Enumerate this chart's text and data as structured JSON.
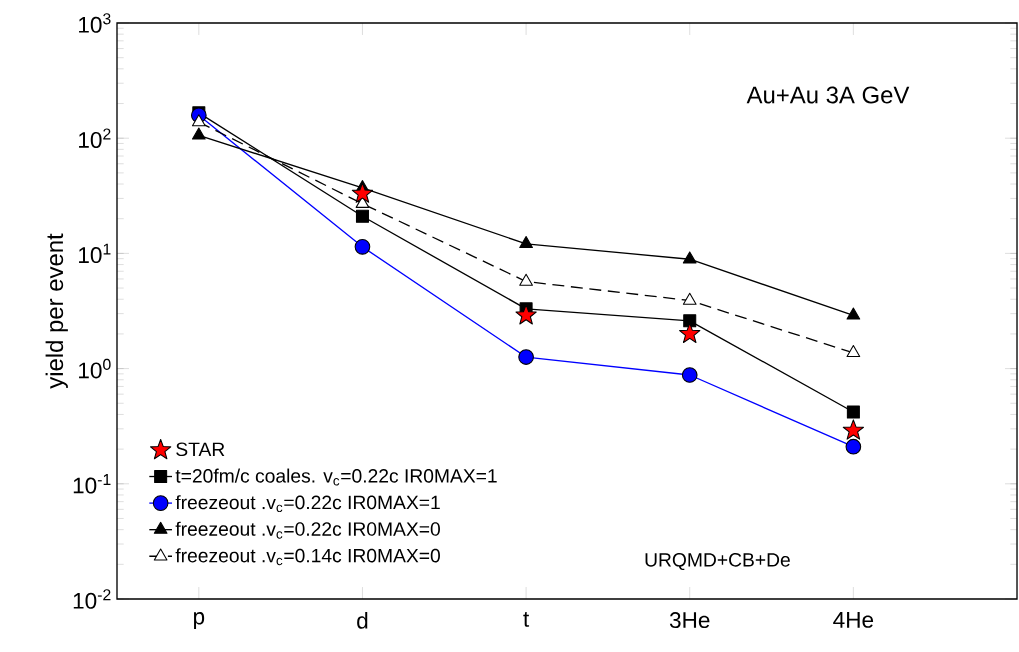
{
  "chart_data": {
    "type": "line",
    "categories": [
      "p",
      "d",
      "t",
      "3He",
      "4He"
    ],
    "ylabel": "yield per event",
    "log": "y",
    "ylim": [
      0.01,
      1000
    ],
    "yticks": [
      {
        "value": 0.01,
        "label": "10$^{-2}$"
      },
      {
        "value": 0.1,
        "label": "10$^{-1}$"
      },
      {
        "value": 1,
        "label": "10$^{0}$"
      },
      {
        "value": 10,
        "label": "10$^{1}$"
      },
      {
        "value": 100,
        "label": "10$^{2}$"
      },
      {
        "value": 1000,
        "label": "10$^{3}$"
      }
    ],
    "legend": "bottom left",
    "grid": false,
    "annotations": [
      "Au+Au   3A GeV",
      "URQMD+CB+De"
    ],
    "series": [
      {
        "name": "STAR",
        "type": "scatter",
        "color": "#ff0000",
        "marker": "star",
        "values": [
          null,
          33,
          2.9,
          2.0,
          0.29
        ]
      },
      {
        "name": "t=20fm/c coales. v$_{c}$=0.22c  IR0MAX=1",
        "color": "#000000",
        "marker": "square",
        "line_style": "solid",
        "values": [
          166,
          21,
          3.3,
          2.6,
          0.42
        ]
      },
      {
        "name": "freezeout .v$_{c}$=0.22c IR0MAX=1",
        "color": "#0000ff",
        "marker": "circle",
        "line_style": "solid",
        "values": [
          158,
          11.4,
          1.26,
          0.88,
          0.21
        ]
      },
      {
        "name": "freezeout .v$_{c}$=0.22c IR0MAX=0",
        "color": "#000000",
        "marker": "triangle",
        "line_style": "solid",
        "values": [
          106,
          37,
          12.1,
          8.9,
          2.9
        ]
      },
      {
        "name": "freezeout .v$_{c}$=0.14c IR0MAX=0",
        "color": "#000000",
        "marker": "triangle",
        "line_style": "dashed",
        "values": [
          138,
          27,
          5.7,
          3.9,
          1.37
        ]
      }
    ]
  }
}
